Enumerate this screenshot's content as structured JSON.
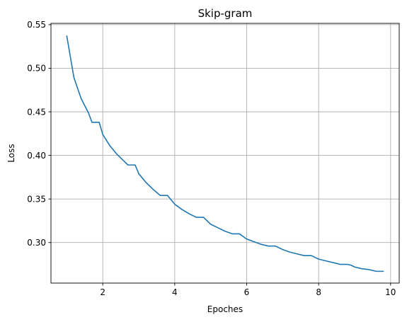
{
  "chart_data": {
    "type": "line",
    "title": "Skip-gram",
    "xlabel": "Epoches",
    "ylabel": "Loss",
    "xlim": [
      0.56,
      10.24
    ],
    "ylim": [
      0.2535,
      0.5515
    ],
    "xticks": [
      2,
      4,
      6,
      8,
      10
    ],
    "yticks": [
      0.3,
      0.35,
      0.4,
      0.45,
      0.5,
      0.55
    ],
    "xtick_labels": [
      "2",
      "4",
      "6",
      "8",
      "10"
    ],
    "ytick_labels": [
      "0.30",
      "0.35",
      "0.40",
      "0.45",
      "0.50",
      "0.55"
    ],
    "grid": true,
    "legend": "none",
    "color": "#1f77b4",
    "series": [
      {
        "x": [
          1.0,
          1.2,
          1.4,
          1.6,
          1.7,
          1.8,
          1.9,
          2.0,
          2.2,
          2.4,
          2.6,
          2.7,
          2.8,
          2.9,
          3.0,
          3.2,
          3.4,
          3.6,
          3.7,
          3.8,
          3.9,
          4.0,
          4.2,
          4.4,
          4.6,
          4.7,
          4.8,
          4.9,
          5.0,
          5.2,
          5.4,
          5.6,
          5.7,
          5.8,
          5.9,
          6.0,
          6.2,
          6.4,
          6.6,
          6.7,
          6.8,
          6.9,
          7.0,
          7.2,
          7.4,
          7.6,
          7.7,
          7.8,
          7.9,
          8.0,
          8.2,
          8.4,
          8.6,
          8.7,
          8.8,
          8.9,
          9.0,
          9.2,
          9.4,
          9.6,
          9.7,
          9.8
        ],
        "y": [
          0.537,
          0.489,
          0.465,
          0.449,
          0.438,
          0.438,
          0.438,
          0.424,
          0.411,
          0.401,
          0.393,
          0.389,
          0.389,
          0.389,
          0.379,
          0.369,
          0.361,
          0.354,
          0.354,
          0.354,
          0.349,
          0.344,
          0.338,
          0.333,
          0.329,
          0.329,
          0.329,
          0.325,
          0.321,
          0.317,
          0.313,
          0.31,
          0.31,
          0.31,
          0.307,
          0.304,
          0.301,
          0.298,
          0.296,
          0.296,
          0.296,
          0.294,
          0.292,
          0.289,
          0.287,
          0.285,
          0.285,
          0.285,
          0.283,
          0.281,
          0.279,
          0.277,
          0.275,
          0.275,
          0.275,
          0.274,
          0.272,
          0.27,
          0.269,
          0.267,
          0.267,
          0.267
        ]
      }
    ]
  }
}
